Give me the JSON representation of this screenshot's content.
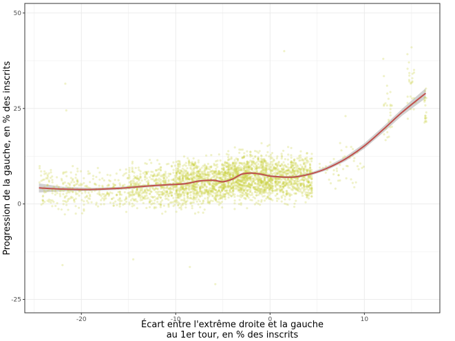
{
  "chart_data": {
    "type": "scatter",
    "title": "",
    "xlabel": [
      "Écart entre l'extrême droite et la gauche",
      "au 1er tour, en % des inscrits"
    ],
    "ylabel": "Progression de la gauche, en % des inscrits",
    "xlim": [
      -26,
      18
    ],
    "ylim": [
      -28.5,
      52.5
    ],
    "x_ticks": [
      -20,
      -10,
      0,
      10
    ],
    "x_tick_labels": [
      "-20",
      "-10",
      "0",
      "10"
    ],
    "y_ticks": [
      -25,
      0,
      25,
      50
    ],
    "y_tick_labels": [
      "-25",
      "0",
      "25",
      "50"
    ],
    "grid": true,
    "legend": "none",
    "colors": {
      "points": "#c8cf3c",
      "smooth_line": "#c0504d",
      "confidence_band": "#9a9a9a",
      "grid": "#ebebeb",
      "panel_border": "#333333"
    },
    "point_clusters": [
      {
        "x_min": -24.5,
        "x_max": -20,
        "y_center": 4,
        "y_spread": 3.5,
        "count": 160
      },
      {
        "x_min": -20,
        "x_max": -15,
        "y_center": 3.5,
        "y_spread": 3.5,
        "count": 160
      },
      {
        "x_min": -15,
        "x_max": -10,
        "y_center": 4.5,
        "y_spread": 3.8,
        "count": 420
      },
      {
        "x_min": -10,
        "x_max": -5,
        "y_center": 5.5,
        "y_spread": 4.0,
        "count": 800
      },
      {
        "x_min": -5,
        "x_max": 0,
        "y_center": 7,
        "y_spread": 4.2,
        "count": 1000
      },
      {
        "x_min": 0,
        "x_max": 4.5,
        "y_center": 7,
        "y_spread": 3.8,
        "count": 650
      },
      {
        "x_min": 5,
        "x_max": 10,
        "y_center": 10,
        "y_spread": 4.0,
        "count": 45
      },
      {
        "x_min": 12,
        "x_max": 13,
        "y_center": 24,
        "y_spread": 6.0,
        "count": 25
      },
      {
        "x_min": 14.5,
        "x_max": 15.5,
        "y_center": 32,
        "y_spread": 5.0,
        "count": 25
      },
      {
        "x_min": 16.3,
        "x_max": 16.6,
        "y_center": 24,
        "y_spread": 4.0,
        "count": 20
      }
    ],
    "outliers": [
      {
        "x": -21.7,
        "y": 31.5
      },
      {
        "x": -21.6,
        "y": 24.5
      },
      {
        "x": -22.0,
        "y": -16.0
      },
      {
        "x": -14.5,
        "y": -14.5
      },
      {
        "x": -5.8,
        "y": -21.0
      },
      {
        "x": -8.5,
        "y": -16.5
      },
      {
        "x": 1.5,
        "y": 40.0
      },
      {
        "x": 8.0,
        "y": 23.0
      },
      {
        "x": 12.0,
        "y": 38.0
      },
      {
        "x": 15.0,
        "y": 41.0
      }
    ],
    "smooth_line": {
      "x": [
        -24.5,
        -22,
        -19,
        -16,
        -13,
        -11,
        -9,
        -7.5,
        -6,
        -5,
        -4,
        -3,
        -2,
        -1,
        0,
        1,
        2,
        3,
        4.5,
        6,
        8,
        10,
        12,
        14,
        16.5
      ],
      "y": [
        4.2,
        3.9,
        3.8,
        4.1,
        4.7,
        5.0,
        5.3,
        6.0,
        6.2,
        5.8,
        6.5,
        7.8,
        8.1,
        7.8,
        7.3,
        7.1,
        7.0,
        7.2,
        8.0,
        9.3,
        11.8,
        15.2,
        19.5,
        24.0,
        29.0
      ],
      "band_halfwidth": [
        1.2,
        0.6,
        0.4,
        0.4,
        0.35,
        0.3,
        0.3,
        0.3,
        0.3,
        0.3,
        0.3,
        0.3,
        0.3,
        0.3,
        0.3,
        0.3,
        0.3,
        0.35,
        0.4,
        0.5,
        0.6,
        0.7,
        0.8,
        0.9,
        1.3
      ]
    }
  }
}
